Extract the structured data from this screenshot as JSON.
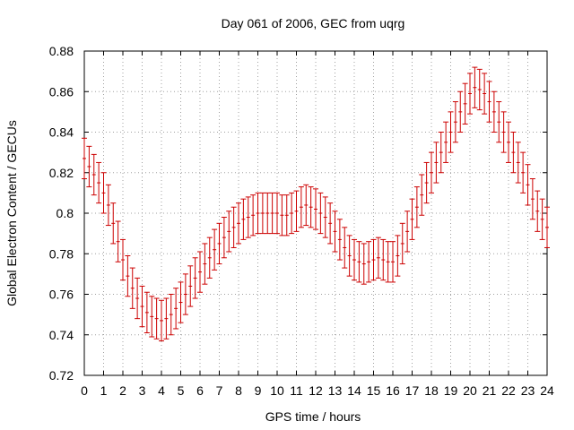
{
  "chart_data": {
    "type": "scatter",
    "title": "Day 061 of 2006, GEC from uqrg",
    "xlabel": "GPS time / hours",
    "ylabel": "Global Electron Content / GECUs",
    "xlim": [
      0,
      24
    ],
    "ylim": [
      0.72,
      0.88
    ],
    "xticks": [
      0,
      1,
      2,
      3,
      4,
      5,
      6,
      7,
      8,
      9,
      10,
      11,
      12,
      13,
      14,
      15,
      16,
      17,
      18,
      19,
      20,
      21,
      22,
      23,
      24
    ],
    "yticks": [
      0.72,
      0.74,
      0.76,
      0.78,
      0.8,
      0.82,
      0.84,
      0.86,
      0.88
    ],
    "ytick_labels": [
      "0.72",
      "0.74",
      "0.76",
      "0.78",
      "0.8",
      "0.82",
      "0.84",
      "0.86",
      "0.88"
    ],
    "grid": true,
    "error": 0.01,
    "colors": {
      "series": "#cc0000",
      "grid": "#a0a0a0",
      "axis": "#000000"
    },
    "series": [
      {
        "name": "GEC",
        "x": [
          0,
          0.25,
          0.5,
          0.75,
          1,
          1.25,
          1.5,
          1.75,
          2,
          2.25,
          2.5,
          2.75,
          3,
          3.25,
          3.5,
          3.75,
          4,
          4.25,
          4.5,
          4.75,
          5,
          5.25,
          5.5,
          5.75,
          6,
          6.25,
          6.5,
          6.75,
          7,
          7.25,
          7.5,
          7.75,
          8,
          8.25,
          8.5,
          8.75,
          9,
          9.25,
          9.5,
          9.75,
          10,
          10.25,
          10.5,
          10.75,
          11,
          11.25,
          11.5,
          11.75,
          12,
          12.25,
          12.5,
          12.75,
          13,
          13.25,
          13.5,
          13.75,
          14,
          14.25,
          14.5,
          14.75,
          15,
          15.25,
          15.5,
          15.75,
          16,
          16.25,
          16.5,
          16.75,
          17,
          17.25,
          17.5,
          17.75,
          18,
          18.25,
          18.5,
          18.75,
          19,
          19.25,
          19.5,
          19.75,
          20,
          20.25,
          20.5,
          20.75,
          21,
          21.25,
          21.5,
          21.75,
          22,
          22.25,
          22.5,
          22.75,
          23,
          23.25,
          23.5,
          23.75,
          24
        ],
        "y": [
          0.827,
          0.823,
          0.819,
          0.815,
          0.81,
          0.804,
          0.795,
          0.786,
          0.777,
          0.769,
          0.763,
          0.758,
          0.754,
          0.751,
          0.749,
          0.748,
          0.747,
          0.748,
          0.75,
          0.753,
          0.756,
          0.76,
          0.764,
          0.768,
          0.771,
          0.775,
          0.778,
          0.782,
          0.785,
          0.788,
          0.791,
          0.793,
          0.795,
          0.797,
          0.798,
          0.799,
          0.8,
          0.8,
          0.8,
          0.8,
          0.8,
          0.799,
          0.799,
          0.8,
          0.801,
          0.803,
          0.804,
          0.803,
          0.802,
          0.8,
          0.798,
          0.795,
          0.791,
          0.787,
          0.783,
          0.779,
          0.777,
          0.776,
          0.775,
          0.776,
          0.777,
          0.778,
          0.777,
          0.776,
          0.776,
          0.779,
          0.785,
          0.791,
          0.797,
          0.803,
          0.809,
          0.815,
          0.82,
          0.825,
          0.83,
          0.835,
          0.84,
          0.845,
          0.85,
          0.854,
          0.859,
          0.862,
          0.861,
          0.859,
          0.855,
          0.85,
          0.845,
          0.84,
          0.835,
          0.83,
          0.825,
          0.82,
          0.814,
          0.807,
          0.801,
          0.797,
          0.793
        ]
      }
    ]
  }
}
